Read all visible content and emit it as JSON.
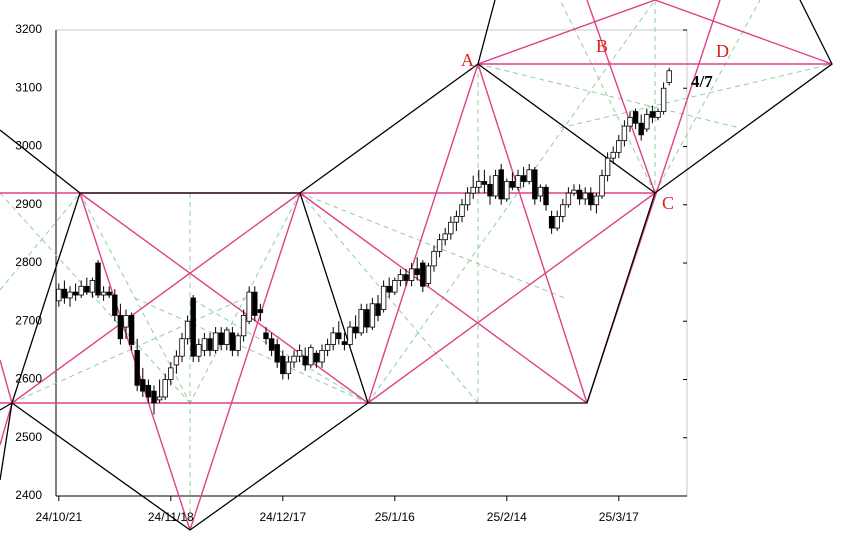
{
  "chart_data": {
    "type": "candlestick",
    "categories": [
      "24/10/21",
      null,
      null,
      null,
      null,
      null,
      null,
      null,
      null,
      null,
      null,
      null,
      null,
      null,
      null,
      null,
      null,
      null,
      null,
      null,
      "24/11/18",
      null,
      null,
      null,
      null,
      null,
      null,
      null,
      null,
      null,
      null,
      null,
      null,
      null,
      null,
      null,
      null,
      null,
      null,
      null,
      "24/12/17",
      null,
      null,
      null,
      null,
      null,
      null,
      null,
      null,
      null,
      null,
      null,
      null,
      null,
      null,
      null,
      null,
      null,
      null,
      null,
      "25/1/16",
      null,
      null,
      null,
      null,
      null,
      null,
      null,
      null,
      null,
      null,
      null,
      null,
      null,
      null,
      null,
      null,
      null,
      null,
      null,
      "25/2/14",
      null,
      null,
      null,
      null,
      null,
      null,
      null,
      null,
      null,
      null,
      null,
      null,
      null,
      null,
      null,
      null,
      null,
      null,
      null,
      "25/3/17",
      null,
      null,
      null,
      null,
      null,
      null,
      null,
      null,
      null
    ],
    "open": [
      2735,
      2755,
      2740,
      2750,
      2745,
      2760,
      2750,
      2800,
      2745,
      2750,
      2745,
      2710,
      2690,
      2710,
      2650,
      2600,
      2590,
      2580,
      2565,
      2570,
      2600,
      2625,
      2640,
      2670,
      2740,
      2640,
      2650,
      2670,
      2650,
      2680,
      2660,
      2680,
      2650,
      2675,
      2700,
      2750,
      2720,
      2680,
      2670,
      2660,
      2640,
      2610,
      2630,
      2640,
      2640,
      2625,
      2645,
      2630,
      2650,
      2660,
      2680,
      2665,
      2660,
      2690,
      2680,
      2720,
      2690,
      2730,
      2720,
      2760,
      2750,
      2770,
      2780,
      2770,
      2790,
      2800,
      2765,
      2795,
      2820,
      2840,
      2850,
      2870,
      2880,
      2900,
      2920,
      2930,
      2940,
      2935,
      2915,
      2960,
      2910,
      2940,
      2930,
      2950,
      2940,
      2960,
      2915,
      2930,
      2880,
      2860,
      2880,
      2900,
      2920,
      2925,
      2910,
      2920,
      2900,
      2915,
      2950,
      2980,
      2990,
      3010,
      3035,
      3060,
      3040,
      3030,
      3060,
      3050,
      3060,
      3110
    ],
    "high": [
      2765,
      2770,
      2760,
      2765,
      2770,
      2775,
      2775,
      2805,
      2760,
      2760,
      2755,
      2730,
      2720,
      2715,
      2670,
      2620,
      2600,
      2590,
      2600,
      2610,
      2630,
      2650,
      2680,
      2710,
      2745,
      2670,
      2680,
      2680,
      2690,
      2690,
      2690,
      2690,
      2680,
      2720,
      2760,
      2760,
      2730,
      2690,
      2680,
      2670,
      2650,
      2640,
      2650,
      2660,
      2655,
      2660,
      2650,
      2660,
      2670,
      2690,
      2700,
      2680,
      2700,
      2710,
      2730,
      2730,
      2740,
      2745,
      2770,
      2775,
      2775,
      2790,
      2790,
      2800,
      2810,
      2805,
      2800,
      2830,
      2850,
      2860,
      2880,
      2890,
      2910,
      2930,
      2950,
      2960,
      2960,
      2950,
      2960,
      2970,
      2945,
      2955,
      2960,
      2965,
      2970,
      2965,
      2935,
      2935,
      2890,
      2890,
      2910,
      2930,
      2935,
      2935,
      2930,
      2930,
      2920,
      2960,
      2990,
      3000,
      3020,
      3045,
      3060,
      3065,
      3055,
      3065,
      3070,
      3065,
      3110,
      3135
    ],
    "low": [
      2725,
      2730,
      2725,
      2735,
      2740,
      2745,
      2740,
      2740,
      2735,
      2740,
      2700,
      2660,
      2670,
      2650,
      2580,
      2570,
      2560,
      2540,
      2560,
      2565,
      2590,
      2610,
      2630,
      2660,
      2630,
      2630,
      2640,
      2640,
      2645,
      2650,
      2650,
      2640,
      2640,
      2665,
      2695,
      2700,
      2700,
      2660,
      2640,
      2620,
      2600,
      2600,
      2620,
      2630,
      2615,
      2620,
      2620,
      2620,
      2640,
      2650,
      2660,
      2650,
      2655,
      2670,
      2675,
      2680,
      2685,
      2700,
      2715,
      2740,
      2745,
      2760,
      2760,
      2760,
      2770,
      2750,
      2760,
      2785,
      2810,
      2830,
      2840,
      2855,
      2870,
      2890,
      2910,
      2920,
      2920,
      2900,
      2910,
      2900,
      2905,
      2925,
      2925,
      2930,
      2935,
      2900,
      2905,
      2890,
      2850,
      2855,
      2870,
      2895,
      2915,
      2900,
      2900,
      2890,
      2885,
      2910,
      2940,
      2970,
      2980,
      3000,
      3025,
      3030,
      3010,
      3025,
      3040,
      3045,
      3055,
      3105
    ],
    "close": [
      2755,
      2740,
      2750,
      2745,
      2760,
      2750,
      2770,
      2745,
      2750,
      2745,
      2710,
      2670,
      2710,
      2660,
      2590,
      2580,
      2570,
      2560,
      2570,
      2600,
      2620,
      2640,
      2670,
      2700,
      2640,
      2660,
      2670,
      2650,
      2680,
      2660,
      2685,
      2650,
      2675,
      2710,
      2750,
      2710,
      2715,
      2670,
      2650,
      2630,
      2610,
      2630,
      2640,
      2650,
      2625,
      2655,
      2630,
      2650,
      2660,
      2680,
      2670,
      2660,
      2690,
      2680,
      2720,
      2690,
      2730,
      2710,
      2760,
      2750,
      2770,
      2780,
      2770,
      2790,
      2780,
      2760,
      2795,
      2820,
      2840,
      2850,
      2870,
      2880,
      2900,
      2920,
      2930,
      2940,
      2935,
      2915,
      2950,
      2910,
      2940,
      2930,
      2950,
      2940,
      2960,
      2910,
      2930,
      2900,
      2860,
      2880,
      2900,
      2920,
      2925,
      2910,
      2920,
      2900,
      2915,
      2950,
      2980,
      2990,
      3010,
      3035,
      3050,
      3040,
      3020,
      3055,
      3050,
      3060,
      3100,
      3130
    ],
    "up_color": "#ffffff",
    "down_color": "#000000",
    "ylim": [
      2400,
      3200
    ],
    "yticks": [
      2400,
      2500,
      2600,
      2700,
      2800,
      2900,
      3000,
      3100,
      3200
    ],
    "annotations": [
      "A",
      "B",
      "C",
      "D",
      "4/7"
    ]
  }
}
